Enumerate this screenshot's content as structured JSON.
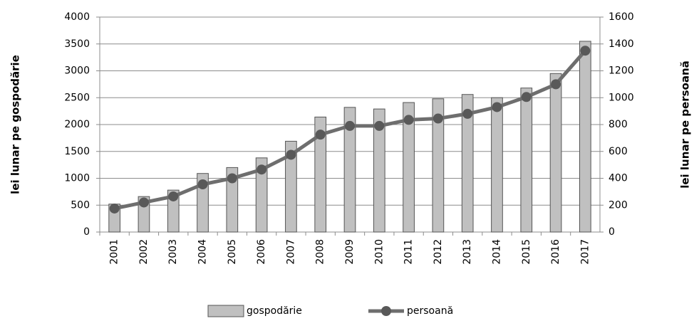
{
  "chart_data": {
    "type": "bar",
    "categories": [
      "2001",
      "2002",
      "2003",
      "2004",
      "2005",
      "2006",
      "2007",
      "2008",
      "2009",
      "2010",
      "2011",
      "2012",
      "2013",
      "2014",
      "2015",
      "2016",
      "2017"
    ],
    "series": [
      {
        "name": "gospodărie",
        "type": "bar",
        "color": "#c0c0c0",
        "values": [
          520,
          660,
          780,
          1090,
          1200,
          1380,
          1690,
          2140,
          2320,
          2290,
          2410,
          2480,
          2560,
          2500,
          2680,
          2950,
          3550
        ]
      },
      {
        "name": "persoană",
        "type": "line",
        "axis": "y2",
        "color": "#6e6e6e",
        "values": [
          175,
          220,
          265,
          355,
          400,
          465,
          575,
          725,
          790,
          790,
          835,
          845,
          880,
          930,
          1005,
          1100,
          1350
        ]
      }
    ],
    "ylabel": "lei lunar pe gospodărie",
    "y2label": "lei lunar pe persoană",
    "ylim": [
      0,
      4000
    ],
    "yticks": [
      0,
      500,
      1000,
      1500,
      2000,
      2500,
      3000,
      3500,
      4000
    ],
    "y2lim": [
      0,
      1600
    ],
    "y2ticks": [
      0,
      200,
      400,
      600,
      800,
      1000,
      1200,
      1400,
      1600
    ],
    "grid": true,
    "legend": "bottom"
  }
}
